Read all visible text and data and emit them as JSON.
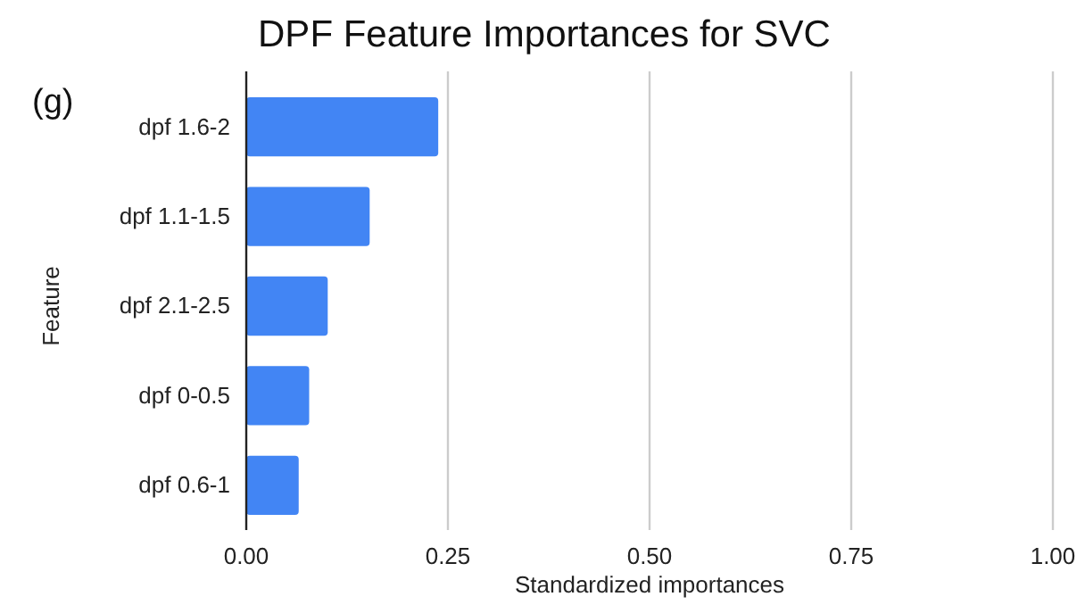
{
  "chart_data": {
    "type": "bar",
    "orientation": "horizontal",
    "title": "DPF Feature Importances for SVC",
    "xlabel": "Standardized importances",
    "ylabel": "Feature",
    "annotations": [
      "(g)"
    ],
    "categories": [
      "dpf 1.6-2",
      "dpf 1.1-1.5",
      "dpf 2.1-2.5",
      "dpf 0-0.5",
      "dpf 0.6-1"
    ],
    "values": [
      0.238,
      0.153,
      0.101,
      0.078,
      0.065
    ],
    "color": "#4285f4",
    "xlim": [
      0,
      1
    ],
    "xticks": [
      {
        "value": 0,
        "label": "0.00"
      },
      {
        "value": 0.25,
        "label": "0.25"
      },
      {
        "value": 0.5,
        "label": "0.50"
      },
      {
        "value": 0.75,
        "label": "0.75"
      },
      {
        "value": 1,
        "label": "1.00"
      }
    ],
    "grid": "x"
  }
}
